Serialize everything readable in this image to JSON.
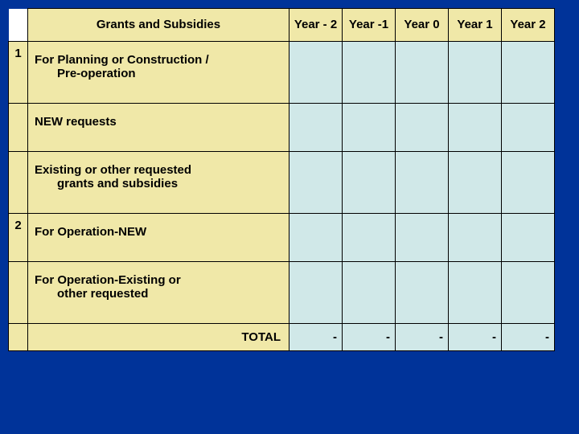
{
  "table": {
    "header": {
      "title": "Grants and Subsidies",
      "columns": [
        "Year - 2",
        "Year -1",
        "Year 0",
        "Year 1",
        "Year 2"
      ]
    },
    "rows": [
      {
        "num": "1",
        "label": "For Planning or Construction / Pre-operation",
        "indent": true,
        "cells": [
          "",
          "",
          "",
          "",
          ""
        ]
      },
      {
        "num": "",
        "label": "NEW requests",
        "indent": false,
        "cells": [
          "",
          "",
          "",
          "",
          ""
        ]
      },
      {
        "num": "",
        "label": "Existing or other requested grants and subsidies",
        "indent": true,
        "cells": [
          "",
          "",
          "",
          "",
          ""
        ]
      },
      {
        "num": "2",
        "label": "For Operation-NEW",
        "indent": false,
        "cells": [
          "",
          "",
          "",
          "",
          ""
        ]
      },
      {
        "num": "",
        "label": "For Operation-Existing or other requested",
        "indent": true,
        "cells": [
          "",
          "",
          "",
          "",
          ""
        ]
      },
      {
        "num": "",
        "label": "TOTAL",
        "total": true,
        "cells": [
          "-",
          "-",
          "-",
          "-",
          "-"
        ]
      }
    ],
    "colors": {
      "page_bg": "#003399",
      "header_bg": "#f0e8a8",
      "label_bg": "#f0e8a8",
      "data_bg": "#d0e8e8",
      "border": "#000000",
      "text": "#000000"
    },
    "typography": {
      "font_family": "Arial",
      "font_size_pt": 11,
      "font_weight": "bold"
    }
  }
}
